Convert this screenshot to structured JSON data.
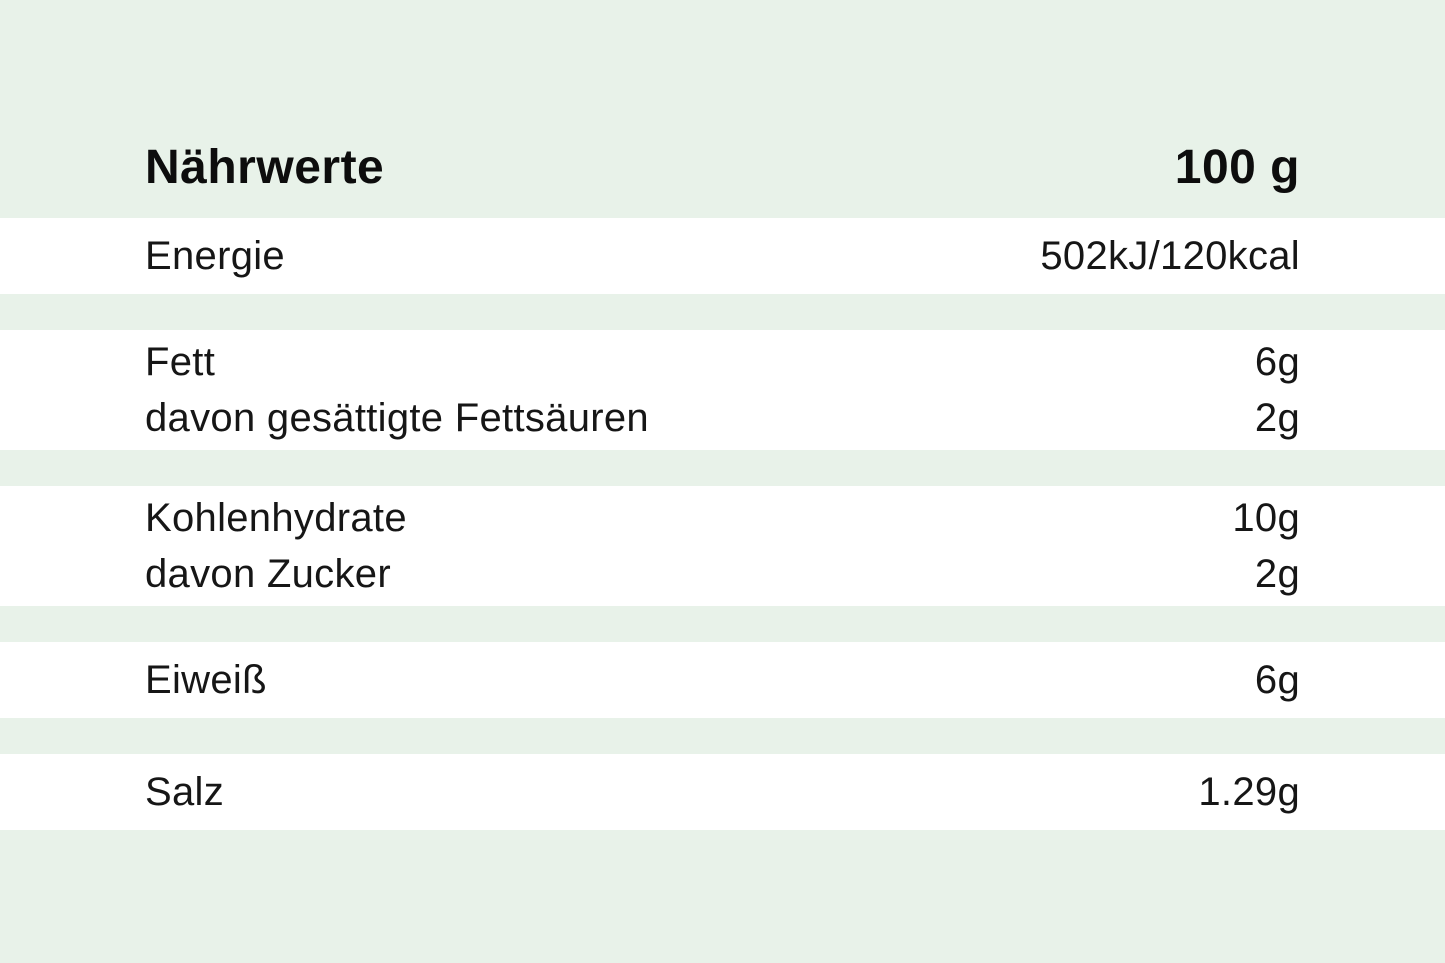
{
  "colors": {
    "background": "#e8f2e9",
    "row_background": "#ffffff",
    "text": "#161616"
  },
  "table": {
    "title": "Nährwerte",
    "amount_header": "100 g",
    "rows": [
      {
        "lines": [
          {
            "label": "Energie",
            "value": "502kJ/120kcal"
          }
        ]
      },
      {
        "lines": [
          {
            "label": "Fett",
            "value": "6g"
          },
          {
            "label": "davon gesättigte Fettsäuren",
            "value": "2g"
          }
        ]
      },
      {
        "lines": [
          {
            "label": "Kohlenhydrate",
            "value": "10g"
          },
          {
            "label": "davon Zucker",
            "value": "2g"
          }
        ]
      },
      {
        "lines": [
          {
            "label": "Eiweiß",
            "value": "6g"
          }
        ]
      },
      {
        "lines": [
          {
            "label": "Salz",
            "value": "1.29g"
          }
        ]
      }
    ]
  }
}
